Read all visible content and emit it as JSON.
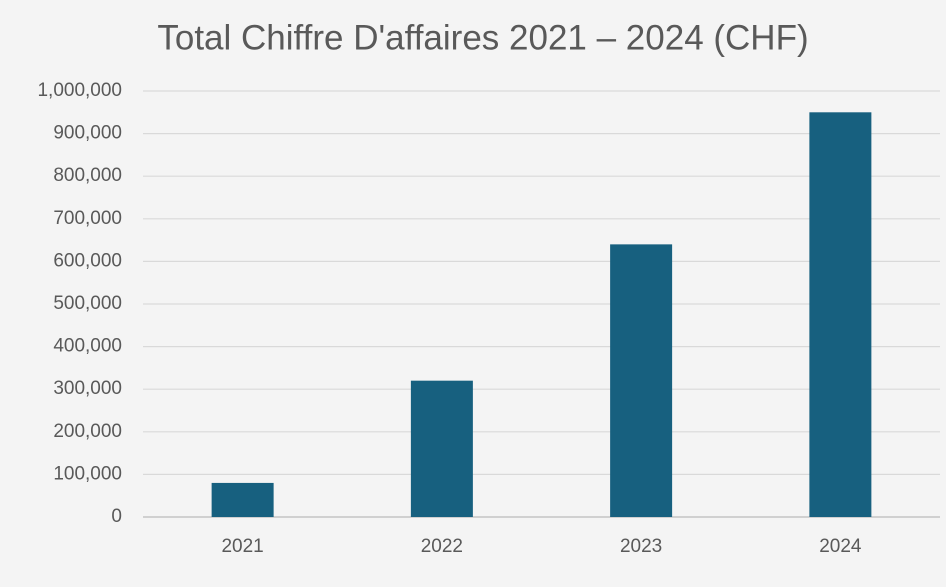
{
  "chart_data": {
    "type": "bar",
    "title": "Total Chiffre D'affaires 2021 – 2024 (CHF)",
    "categories": [
      "2021",
      "2022",
      "2023",
      "2024"
    ],
    "values": [
      80000,
      320000,
      640000,
      950000
    ],
    "color": "#17607f",
    "ylim": [
      0,
      1000000
    ],
    "yticks": [
      0,
      {
        "value": 100000,
        "label": "100,000"
      },
      {
        "value": 200000,
        "label": "200,000"
      },
      {
        "value": 300000,
        "label": "300,000"
      },
      {
        "value": 400000,
        "label": "400,000"
      },
      {
        "value": 500000,
        "label": "500,000"
      },
      {
        "value": 600000,
        "label": "600,000"
      },
      {
        "value": 700000,
        "label": "700,000"
      },
      {
        "value": 800000,
        "label": "800,000"
      },
      {
        "value": 900000,
        "label": "900,000"
      },
      {
        "value": 1000000,
        "label": "1,000,000"
      }
    ],
    "grid": true
  }
}
